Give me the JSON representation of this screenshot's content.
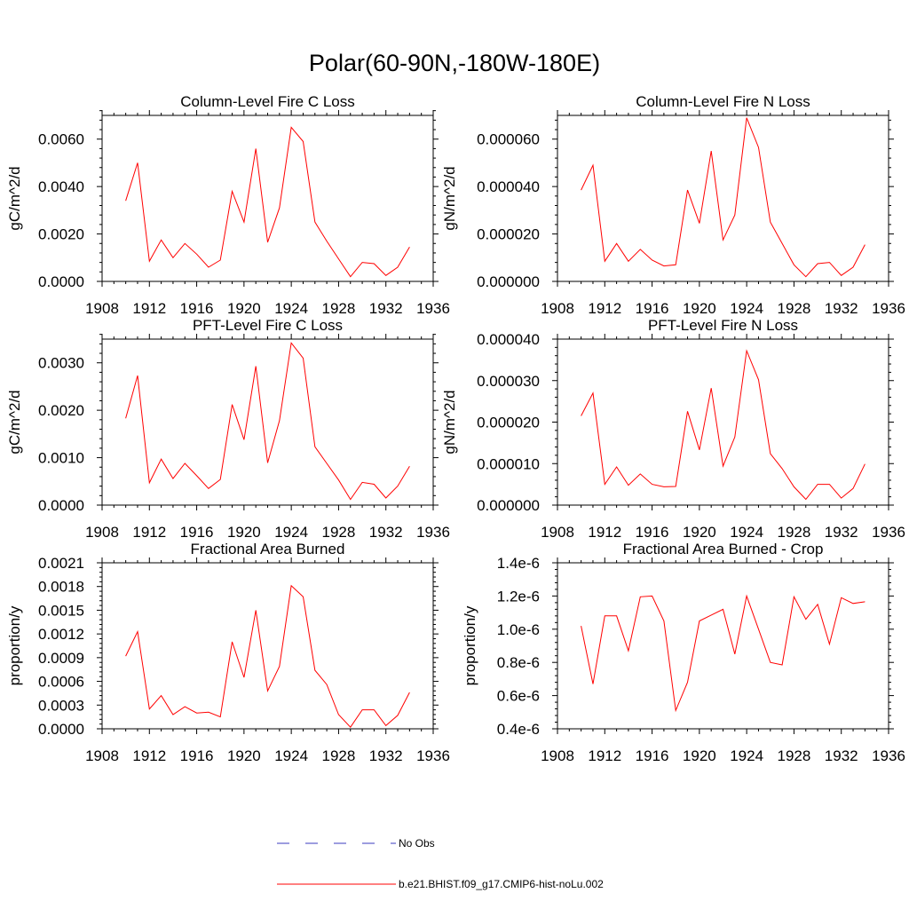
{
  "page": {
    "title": "Polar(60-90N,-180W-180E)"
  },
  "legend": [
    {
      "label": "No Obs",
      "color": "#3b3bbf",
      "style": "dashed"
    },
    {
      "label": "b.e21.BHIST.f09_g17.CMIP6-hist-noLu.002",
      "color": "#ff0000",
      "style": "solid"
    }
  ],
  "chart_data": [
    {
      "type": "line",
      "title": "Column-Level Fire C Loss",
      "ylabel": "gC/m^2/d",
      "xlim": [
        1908,
        1936
      ],
      "xticks": [
        "1908",
        "1912",
        "1916",
        "1920",
        "1924",
        "1928",
        "1932",
        "1936"
      ],
      "ylim": [
        0,
        0.007
      ],
      "yticks": [
        "0.0000",
        "0.0020",
        "0.0040",
        "0.0060"
      ],
      "series": [
        {
          "color": "#ff0000",
          "x": [
            1910,
            1911,
            1912,
            1913,
            1914,
            1915,
            1916,
            1917,
            1918,
            1919,
            1920,
            1921,
            1922,
            1923,
            1924,
            1925,
            1926,
            1927,
            1928,
            1929,
            1930,
            1931,
            1932,
            1933,
            1934
          ],
          "values": [
            0.0034,
            0.005,
            0.00085,
            0.00175,
            0.001,
            0.0016,
            0.00115,
            0.0006,
            0.0009,
            0.0038,
            0.0025,
            0.0056,
            0.00165,
            0.0031,
            0.0065,
            0.0059,
            0.0025,
            0.0017,
            0.00095,
            0.0002,
            0.0008,
            0.00075,
            0.00025,
            0.0006,
            0.00145
          ]
        }
      ]
    },
    {
      "type": "line",
      "title": "Column-Level Fire N Loss",
      "ylabel": "gN/m^2/d",
      "xlim": [
        1908,
        1936
      ],
      "xticks": [
        "1908",
        "1912",
        "1916",
        "1920",
        "1924",
        "1928",
        "1932",
        "1936"
      ],
      "ylim": [
        0,
        7e-05
      ],
      "yticks": [
        "0.000000",
        "0.000020",
        "0.000040",
        "0.000060"
      ],
      "series": [
        {
          "color": "#ff0000",
          "x": [
            1910,
            1911,
            1912,
            1913,
            1914,
            1915,
            1916,
            1917,
            1918,
            1919,
            1920,
            1921,
            1922,
            1923,
            1924,
            1925,
            1926,
            1927,
            1928,
            1929,
            1930,
            1931,
            1932,
            1933,
            1934
          ],
          "values": [
            3.85e-05,
            4.9e-05,
            8.5e-06,
            1.6e-05,
            8.5e-06,
            1.35e-05,
            9e-06,
            6.5e-06,
            7e-06,
            3.85e-05,
            2.45e-05,
            5.5e-05,
            1.75e-05,
            2.8e-05,
            6.9e-05,
            5.65e-05,
            2.5e-05,
            1.6e-05,
            7e-06,
            2e-06,
            7.5e-06,
            8e-06,
            2.5e-06,
            6e-06,
            1.55e-05
          ]
        }
      ]
    },
    {
      "type": "line",
      "title": "PFT-Level Fire C Loss",
      "ylabel": "gC/m^2/d",
      "xlim": [
        1908,
        1936
      ],
      "xticks": [
        "1908",
        "1912",
        "1916",
        "1920",
        "1924",
        "1928",
        "1932",
        "1936"
      ],
      "ylim": [
        0,
        0.0035
      ],
      "yticks": [
        "0.0000",
        "0.0010",
        "0.0020",
        "0.0030"
      ],
      "series": [
        {
          "color": "#ff0000",
          "x": [
            1910,
            1911,
            1912,
            1913,
            1914,
            1915,
            1916,
            1917,
            1918,
            1919,
            1920,
            1921,
            1922,
            1923,
            1924,
            1925,
            1926,
            1927,
            1928,
            1929,
            1930,
            1931,
            1932,
            1933,
            1934
          ],
          "values": [
            0.00183,
            0.00273,
            0.00047,
            0.00097,
            0.00056,
            0.00088,
            0.00062,
            0.00035,
            0.00054,
            0.00212,
            0.00138,
            0.00293,
            0.00089,
            0.00178,
            0.00342,
            0.0031,
            0.00123,
            0.00088,
            0.00053,
            0.00012,
            0.00048,
            0.00044,
            0.00015,
            0.0004,
            0.00082
          ]
        }
      ]
    },
    {
      "type": "line",
      "title": "PFT-Level Fire N Loss",
      "ylabel": "gN/m^2/d",
      "xlim": [
        1908,
        1936
      ],
      "xticks": [
        "1908",
        "1912",
        "1916",
        "1920",
        "1924",
        "1928",
        "1932",
        "1936"
      ],
      "ylim": [
        0,
        4e-05
      ],
      "yticks": [
        "0.000000",
        "0.000010",
        "0.000020",
        "0.000030",
        "0.000040"
      ],
      "series": [
        {
          "color": "#ff0000",
          "x": [
            1910,
            1911,
            1912,
            1913,
            1914,
            1915,
            1916,
            1917,
            1918,
            1919,
            1920,
            1921,
            1922,
            1923,
            1924,
            1925,
            1926,
            1927,
            1928,
            1929,
            1930,
            1931,
            1932,
            1933,
            1934
          ],
          "values": [
            2.15e-05,
            2.7e-05,
            5e-06,
            9.2e-06,
            4.8e-06,
            7.5e-06,
            5e-06,
            4.4e-06,
            4.5e-06,
            2.26e-05,
            1.33e-05,
            2.82e-05,
            9.4e-06,
            1.64e-05,
            3.72e-05,
            3.02e-05,
            1.24e-05,
            8.8e-06,
            4.4e-06,
            1.4e-06,
            5e-06,
            5e-06,
            1.7e-06,
            4e-06,
            9.9e-06
          ]
        }
      ]
    },
    {
      "type": "line",
      "title": "Fractional Area Burned",
      "ylabel": "proportion/y",
      "xlim": [
        1908,
        1936
      ],
      "xticks": [
        "1908",
        "1912",
        "1916",
        "1920",
        "1924",
        "1928",
        "1932",
        "1936"
      ],
      "ylim": [
        0,
        0.0021
      ],
      "yticks": [
        "0.0000",
        "0.0003",
        "0.0006",
        "0.0009",
        "0.0012",
        "0.0015",
        "0.0018",
        "0.0021"
      ],
      "series": [
        {
          "color": "#ff0000",
          "x": [
            1910,
            1911,
            1912,
            1913,
            1914,
            1915,
            1916,
            1917,
            1918,
            1919,
            1920,
            1921,
            1922,
            1923,
            1924,
            1925,
            1926,
            1927,
            1928,
            1929,
            1930,
            1931,
            1932,
            1933,
            1934
          ],
          "values": [
            0.00092,
            0.00123,
            0.00025,
            0.00042,
            0.00018,
            0.00028,
            0.0002,
            0.00021,
            0.00015,
            0.0011,
            0.00065,
            0.0015,
            0.00048,
            0.00079,
            0.00181,
            0.00167,
            0.00074,
            0.00056,
            0.00018,
            2e-05,
            0.00024,
            0.00024,
            4e-05,
            0.00017,
            0.00046
          ]
        }
      ]
    },
    {
      "type": "line",
      "title": "Fractional Area Burned - Crop",
      "ylabel": "proportion/y",
      "xlim": [
        1908,
        1936
      ],
      "xticks": [
        "1908",
        "1912",
        "1916",
        "1920",
        "1924",
        "1928",
        "1932",
        "1936"
      ],
      "ylim": [
        4e-07,
        1.4e-06
      ],
      "yticks": [
        "0.4e-6",
        "0.6e-6",
        "0.8e-6",
        "1.0e-6",
        "1.2e-6",
        "1.4e-6"
      ],
      "series": [
        {
          "color": "#ff0000",
          "x": [
            1910,
            1911,
            1912,
            1913,
            1914,
            1915,
            1916,
            1917,
            1918,
            1919,
            1920,
            1921,
            1922,
            1923,
            1924,
            1925,
            1926,
            1927,
            1928,
            1929,
            1930,
            1931,
            1932,
            1933,
            1934
          ],
          "values": [
            1.02e-06,
            6.7e-07,
            1.08e-06,
            1.08e-06,
            8.7e-07,
            1.195e-06,
            1.2e-06,
            1.05e-06,
            5.1e-07,
            6.8e-07,
            1.05e-06,
            1.085e-06,
            1.12e-06,
            8.5e-07,
            1.2e-06,
            1e-06,
            8e-07,
            7.85e-07,
            1.195e-06,
            1.06e-06,
            1.15e-06,
            9.1e-07,
            1.19e-06,
            1.155e-06,
            1.165e-06
          ]
        }
      ]
    }
  ]
}
